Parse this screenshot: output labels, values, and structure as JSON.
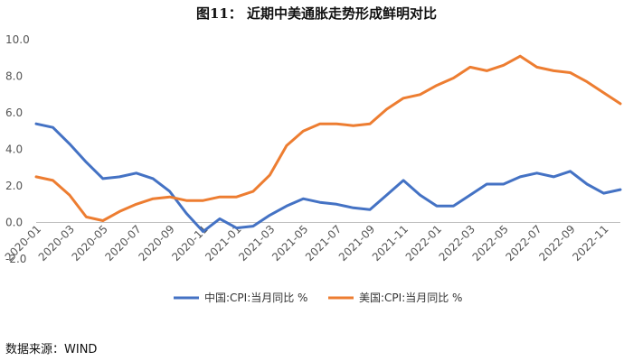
{
  "title": "图11： 近期中美通胀走势形成鲜明对比",
  "source": "数据来源：WIND",
  "chart_data": {
    "type": "line",
    "title": "图11： 近期中美通胀走势形成鲜明对比",
    "xlabel": "",
    "ylabel": "",
    "ylim": [
      -2.0,
      10.0
    ],
    "yticks": [
      "-2.0",
      "0.0",
      "2.0",
      "4.0",
      "6.0",
      "8.0",
      "10.0"
    ],
    "ytick_values": [
      -2,
      0,
      2,
      4,
      6,
      8,
      10
    ],
    "grid": false,
    "legend_position": "bottom",
    "x": [
      "2020-01",
      "2020-02",
      "2020-03",
      "2020-04",
      "2020-05",
      "2020-06",
      "2020-07",
      "2020-08",
      "2020-09",
      "2020-10",
      "2020-11",
      "2020-12",
      "2021-01",
      "2021-02",
      "2021-03",
      "2021-04",
      "2021-05",
      "2021-06",
      "2021-07",
      "2021-08",
      "2021-09",
      "2021-10",
      "2021-11",
      "2021-12",
      "2022-01",
      "2022-02",
      "2022-03",
      "2022-04",
      "2022-05",
      "2022-06",
      "2022-07",
      "2022-08",
      "2022-09",
      "2022-10",
      "2022-11",
      "2022-12"
    ],
    "xtick_labels": [
      "2020-01",
      "2020-03",
      "2020-05",
      "2020-07",
      "2020-09",
      "2020-11",
      "2021-01",
      "2021-03",
      "2021-05",
      "2021-07",
      "2021-09",
      "2021-11",
      "2022-01",
      "2022-03",
      "2022-05",
      "2022-07",
      "2022-09",
      "2022-11"
    ],
    "series": [
      {
        "name": "中国:CPI:当月同比 %",
        "color": "#4472C4",
        "values": [
          5.4,
          5.2,
          4.3,
          3.3,
          2.4,
          2.5,
          2.7,
          2.4,
          1.7,
          0.5,
          -0.5,
          0.2,
          -0.3,
          -0.2,
          0.4,
          0.9,
          1.3,
          1.1,
          1.0,
          0.8,
          0.7,
          1.5,
          2.3,
          1.5,
          0.9,
          0.9,
          1.5,
          2.1,
          2.1,
          2.5,
          2.7,
          2.5,
          2.8,
          2.1,
          1.6,
          1.8
        ]
      },
      {
        "name": "美国:CPI:当月同比 %",
        "color": "#ED7D31",
        "values": [
          2.5,
          2.3,
          1.5,
          0.3,
          0.1,
          0.6,
          1.0,
          1.3,
          1.4,
          1.2,
          1.2,
          1.4,
          1.4,
          1.7,
          2.6,
          4.2,
          5.0,
          5.4,
          5.4,
          5.3,
          5.4,
          6.2,
          6.8,
          7.0,
          7.5,
          7.9,
          8.5,
          8.3,
          8.6,
          9.1,
          8.5,
          8.3,
          8.2,
          7.7,
          7.1,
          6.5
        ]
      }
    ]
  }
}
